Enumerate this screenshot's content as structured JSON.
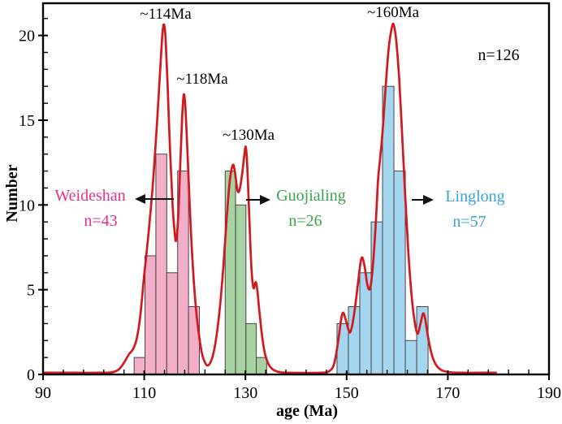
{
  "annotations": {
    "total_label": "n=126",
    "peak_labels": [
      "~114Ma",
      "~118Ma",
      "~130Ma",
      "~160Ma"
    ],
    "groups": [
      {
        "name": "Weideshan",
        "count_label": "n=43"
      },
      {
        "name": "Guojialing",
        "count_label": "n=26"
      },
      {
        "name": "Linglong",
        "count_label": "n=57"
      }
    ]
  },
  "chart_data": {
    "type": "bar",
    "subtype": "histogram-with-kde-curve",
    "title": "",
    "xlabel": "age (Ma)",
    "ylabel": "Number",
    "xlim": [
      90,
      190
    ],
    "ylim": [
      0,
      21.9
    ],
    "x_major_ticks": [
      90,
      110,
      130,
      150,
      170,
      190
    ],
    "x_minor_step": 4,
    "y_major_ticks": [
      0,
      5,
      10,
      15,
      20
    ],
    "y_minor_step": 1,
    "grid": "off",
    "total_n": 126,
    "bar_stroke": "#454545",
    "series": [
      {
        "name": "Weideshan",
        "n": 43,
        "fill": "#f3afca",
        "label_color": "#e5308e",
        "bin_edges": [
          108.0,
          110.15,
          112.3,
          114.45,
          116.6,
          118.75,
          120.9
        ],
        "counts": [
          1,
          7,
          13,
          6,
          12,
          4
        ]
      },
      {
        "name": "Guojialing",
        "n": 26,
        "fill": "#a7d3a2",
        "label_color": "#3ea34e",
        "bin_edges": [
          126.0,
          128.05,
          130.1,
          132.15,
          134.2
        ],
        "counts": [
          12,
          10,
          3,
          1
        ]
      },
      {
        "name": "Linglong",
        "n": 57,
        "fill": "#a5d6ef",
        "label_color": "#36a3da",
        "bin_edges": [
          148.1,
          150.35,
          152.6,
          154.85,
          157.1,
          159.35,
          161.6,
          163.85,
          166.1
        ],
        "counts": [
          3,
          4,
          6,
          9,
          17,
          12,
          2,
          4
        ]
      }
    ],
    "kde_curve": {
      "color": "#d01a1d",
      "peaks_ma": [
        114,
        118,
        130,
        160
      ],
      "points": [
        [
          90,
          0.1
        ],
        [
          96,
          0.1
        ],
        [
          101,
          0.1
        ],
        [
          103.5,
          0.12
        ],
        [
          105,
          0.3
        ],
        [
          106,
          0.7
        ],
        [
          107,
          1.2
        ],
        [
          107.8,
          1.5
        ],
        [
          108.5,
          2.1
        ],
        [
          109.2,
          3.4
        ],
        [
          109.9,
          5.6
        ],
        [
          110.4,
          7.0
        ],
        [
          111,
          8.8
        ],
        [
          111.8,
          11.6
        ],
        [
          112.6,
          15.2
        ],
        [
          113.2,
          18.2
        ],
        [
          113.6,
          20.1
        ],
        [
          113.9,
          20.65
        ],
        [
          114.2,
          19.9
        ],
        [
          114.6,
          17.2
        ],
        [
          115.1,
          13.2
        ],
        [
          115.6,
          10.0
        ],
        [
          116.0,
          8.4
        ],
        [
          116.3,
          7.9
        ],
        [
          116.7,
          9.2
        ],
        [
          117.1,
          12.2
        ],
        [
          117.5,
          15.2
        ],
        [
          117.8,
          16.5
        ],
        [
          118.1,
          15.9
        ],
        [
          118.5,
          13.4
        ],
        [
          119.0,
          9.9
        ],
        [
          119.5,
          6.9
        ],
        [
          120.1,
          4.3
        ],
        [
          120.7,
          2.6
        ],
        [
          121.4,
          1.25
        ],
        [
          122.1,
          0.65
        ],
        [
          122.7,
          0.55
        ],
        [
          123.4,
          0.95
        ],
        [
          124.1,
          1.9
        ],
        [
          124.9,
          3.8
        ],
        [
          125.6,
          6.2
        ],
        [
          126.3,
          9.2
        ],
        [
          126.9,
          11.4
        ],
        [
          127.5,
          12.35
        ],
        [
          127.9,
          12.0
        ],
        [
          128.4,
          10.9
        ],
        [
          128.8,
          10.85
        ],
        [
          129.3,
          11.7
        ],
        [
          129.8,
          13.0
        ],
        [
          130.1,
          13.4
        ],
        [
          130.4,
          12.0
        ],
        [
          130.8,
          9.0
        ],
        [
          131.2,
          6.2
        ],
        [
          131.6,
          5.1
        ],
        [
          132.0,
          5.45
        ],
        [
          132.3,
          5.1
        ],
        [
          132.7,
          3.9
        ],
        [
          133.2,
          2.5
        ],
        [
          133.8,
          1.3
        ],
        [
          134.5,
          0.65
        ],
        [
          135.4,
          0.3
        ],
        [
          136.6,
          0.15
        ],
        [
          138.5,
          0.1
        ],
        [
          142,
          0.09
        ],
        [
          145,
          0.1
        ],
        [
          146.5,
          0.18
        ],
        [
          147.5,
          0.6
        ],
        [
          148.3,
          1.9
        ],
        [
          148.9,
          3.2
        ],
        [
          149.3,
          3.65
        ],
        [
          149.8,
          3.25
        ],
        [
          150.4,
          2.6
        ],
        [
          150.8,
          2.55
        ],
        [
          151.4,
          3.4
        ],
        [
          152.1,
          5.0
        ],
        [
          152.7,
          6.5
        ],
        [
          153.1,
          6.9
        ],
        [
          153.6,
          6.3
        ],
        [
          154.1,
          5.3
        ],
        [
          154.6,
          5.05
        ],
        [
          155.1,
          6.1
        ],
        [
          155.7,
          8.6
        ],
        [
          156.2,
          11.4
        ],
        [
          156.6,
          12.7
        ],
        [
          157.1,
          14.3
        ],
        [
          157.7,
          16.9
        ],
        [
          158.3,
          19.2
        ],
        [
          158.9,
          20.4
        ],
        [
          159.3,
          20.65
        ],
        [
          159.8,
          19.7
        ],
        [
          160.4,
          17.4
        ],
        [
          161.0,
          14.0
        ],
        [
          161.6,
          10.4
        ],
        [
          162.2,
          7.2
        ],
        [
          162.8,
          4.8
        ],
        [
          163.4,
          3.2
        ],
        [
          164.0,
          2.4
        ],
        [
          164.6,
          3.0
        ],
        [
          165.1,
          3.6
        ],
        [
          165.5,
          3.3
        ],
        [
          166.1,
          2.2
        ],
        [
          166.8,
          1.2
        ],
        [
          167.7,
          0.55
        ],
        [
          168.8,
          0.25
        ],
        [
          170.5,
          0.13
        ],
        [
          173,
          0.1
        ],
        [
          176,
          0.1
        ],
        [
          179.5,
          0.1
        ]
      ]
    }
  }
}
